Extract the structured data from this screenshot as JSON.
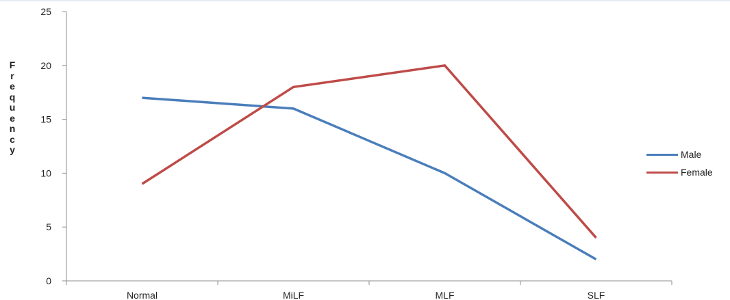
{
  "chart_data": {
    "type": "line",
    "categories": [
      "Normal",
      "MiLF",
      "MLF",
      "SLF"
    ],
    "series": [
      {
        "name": "Male",
        "values": [
          17,
          16,
          10,
          2
        ],
        "color": "#4A7EBB"
      },
      {
        "name": "Female",
        "values": [
          9,
          18,
          20,
          4
        ],
        "color": "#BE4B48"
      }
    ],
    "ylabel": "Frequency",
    "xlabel": "",
    "title": "",
    "ylim": [
      0,
      25
    ],
    "yticks": [
      0,
      5,
      10,
      15,
      20,
      25
    ],
    "grid": false,
    "legend_position": "right"
  }
}
